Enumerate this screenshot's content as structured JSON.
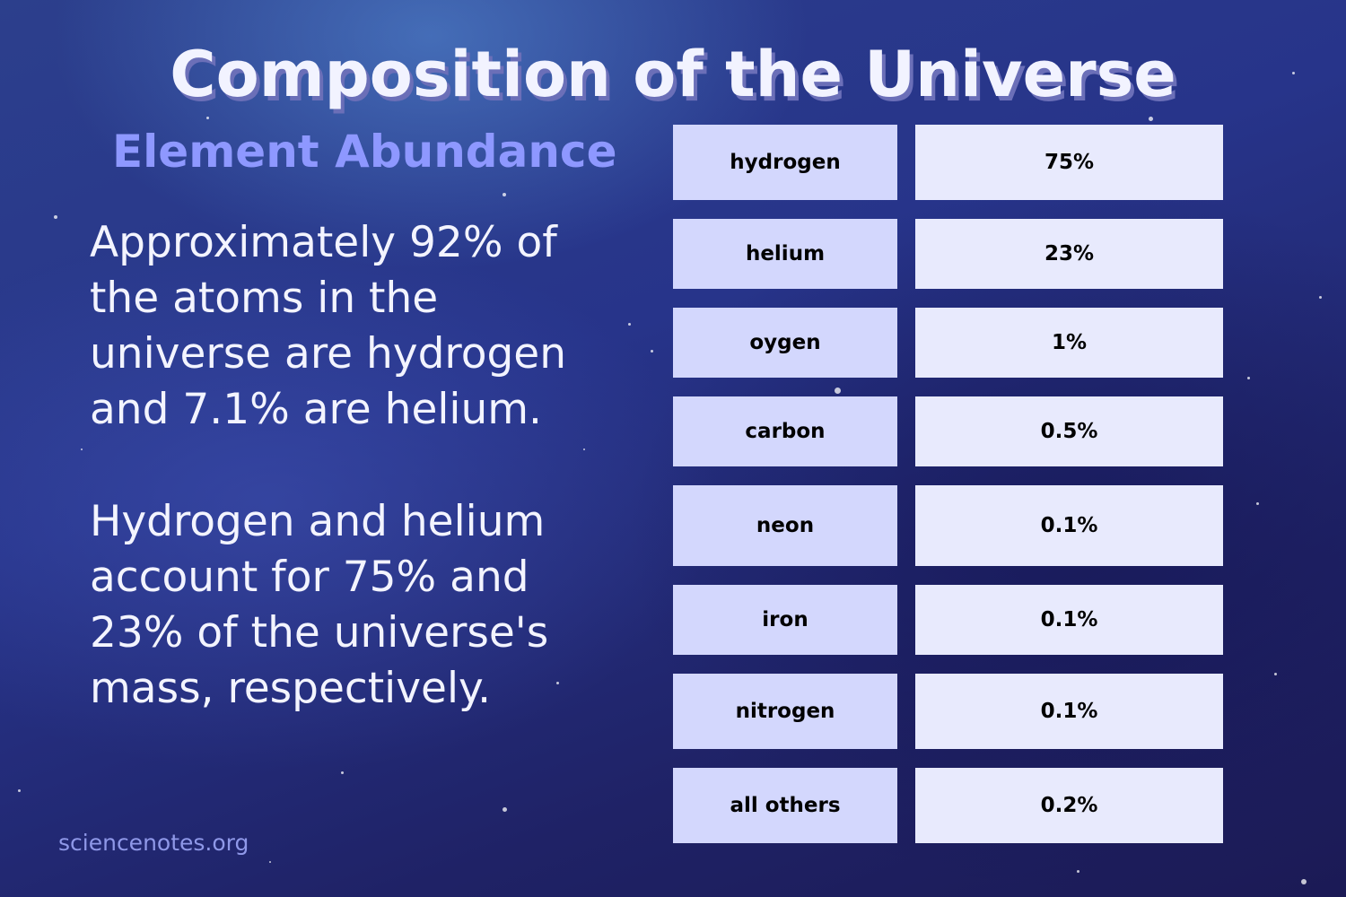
{
  "header": {
    "title": "Composition of the Universe",
    "subtitle": "Element Abundance"
  },
  "paragraphs": [
    "Approximately 92% of the atoms in the universe are hydrogen and 7.1% are helium.",
    "Hydrogen and helium account for 75% and 23% of the universe's mass, respectively."
  ],
  "table": {
    "rows": [
      [
        "hydrogen",
        "75%"
      ],
      [
        "helium",
        "23%"
      ],
      [
        "oygen",
        "1%"
      ],
      [
        "carbon",
        "0.5%"
      ],
      [
        "neon",
        "0.1%"
      ],
      [
        "iron",
        "0.1%"
      ],
      [
        "nitrogen",
        "0.1%"
      ],
      [
        "all others",
        "0.2%"
      ]
    ]
  },
  "footer": {
    "source": "sciencenotes.org"
  }
}
